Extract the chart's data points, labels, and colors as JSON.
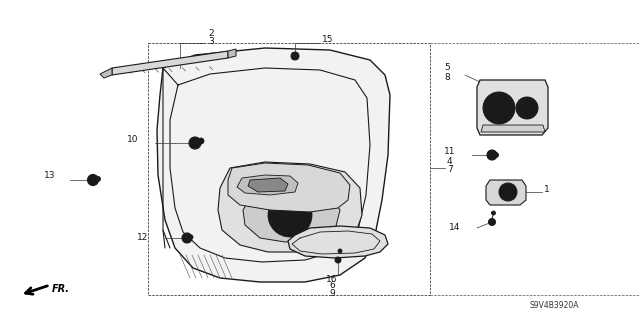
{
  "bg_color": "#ffffff",
  "diagram_code": "S9V4B3920A",
  "line_color": "#1a1a1a",
  "gray_fill": "#e8e8e8",
  "dark_gray": "#b0b0b0",
  "mid_gray": "#c8c8c8"
}
